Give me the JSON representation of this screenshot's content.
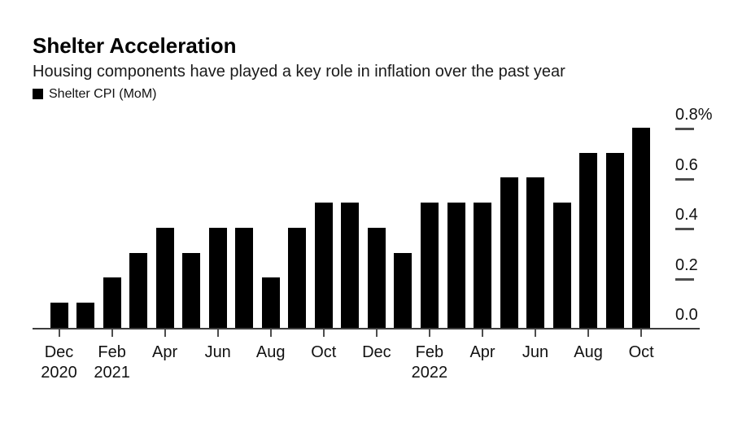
{
  "header": {
    "title": "Shelter Acceleration",
    "subtitle": "Housing components have played a key role in inflation over the past year"
  },
  "legend": {
    "label": "Shelter CPI (MoM)",
    "swatch_color": "#000000"
  },
  "chart_data": {
    "type": "bar",
    "title": "Shelter Acceleration",
    "subtitle": "Housing components have played a key role in inflation over the past year",
    "series_name": "Shelter CPI (MoM)",
    "categories": [
      "Dec 2020",
      "Jan 2021",
      "Feb 2021",
      "Mar 2021",
      "Apr 2021",
      "May 2021",
      "Jun 2021",
      "Jul 2021",
      "Aug 2021",
      "Sep 2021",
      "Oct 2021",
      "Nov 2021",
      "Dec 2021",
      "Jan 2022",
      "Feb 2022",
      "Mar 2022",
      "Apr 2022",
      "May 2022",
      "Jun 2022",
      "Jul 2022",
      "Aug 2022",
      "Sep 2022",
      "Oct 2022"
    ],
    "values": [
      0.1,
      0.1,
      0.2,
      0.3,
      0.4,
      0.3,
      0.4,
      0.4,
      0.2,
      0.4,
      0.5,
      0.5,
      0.4,
      0.3,
      0.5,
      0.5,
      0.5,
      0.6,
      0.6,
      0.5,
      0.7,
      0.7,
      0.8
    ],
    "unit": "%",
    "xlabel": "",
    "ylabel": "",
    "ylim": [
      0,
      0.85
    ],
    "grid": false,
    "legend_position": "top-left",
    "y_axis": {
      "side": "right",
      "ticks": [
        {
          "label": "0.8%",
          "value": 0.8
        },
        {
          "label": "0.6",
          "value": 0.6
        },
        {
          "label": "0.4",
          "value": 0.4
        },
        {
          "label": "0.2",
          "value": 0.2
        },
        {
          "label": "0.0",
          "value": 0.0
        }
      ]
    },
    "x_axis": {
      "ticks": [
        {
          "line1": "Dec",
          "line2": "2020",
          "bar_index": 0
        },
        {
          "line1": "Feb",
          "line2": "2021",
          "bar_index": 2
        },
        {
          "line1": "Apr",
          "line2": "",
          "bar_index": 4
        },
        {
          "line1": "Jun",
          "line2": "",
          "bar_index": 6
        },
        {
          "line1": "Aug",
          "line2": "",
          "bar_index": 8
        },
        {
          "line1": "Oct",
          "line2": "",
          "bar_index": 10
        },
        {
          "line1": "Dec",
          "line2": "",
          "bar_index": 12
        },
        {
          "line1": "Feb",
          "line2": "2022",
          "bar_index": 14
        },
        {
          "line1": "Apr",
          "line2": "",
          "bar_index": 16
        },
        {
          "line1": "Jun",
          "line2": "",
          "bar_index": 18
        },
        {
          "line1": "Aug",
          "line2": "",
          "bar_index": 20
        },
        {
          "line1": "Oct",
          "line2": "",
          "bar_index": 22
        }
      ]
    },
    "colors": {
      "bar": "#000000",
      "axis": "#3d3d3d",
      "tick": "#4d4d4d",
      "text": "#111111"
    }
  }
}
